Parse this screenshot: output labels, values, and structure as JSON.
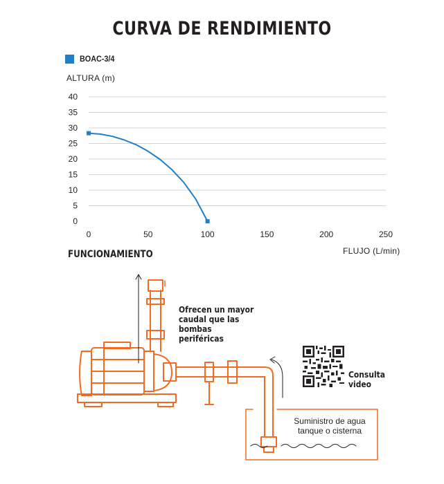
{
  "title": "CURVA DE RENDIMIENTO",
  "chart_data": {
    "type": "line",
    "title": "CURVA DE RENDIMIENTO",
    "xlabel": "FLUJO (L/min)",
    "ylabel": "ALTURA  (m)",
    "xlim": [
      0,
      250
    ],
    "ylim": [
      0,
      40
    ],
    "xticks": [
      0,
      50,
      100,
      150,
      200,
      250
    ],
    "yticks": [
      0,
      5,
      10,
      15,
      20,
      25,
      30,
      35,
      40
    ],
    "grid": "horizontal",
    "legend_position": "top-left",
    "series": [
      {
        "name": "BOAC-3/4",
        "color": "#1f7fc8",
        "x": [
          0,
          10,
          20,
          30,
          40,
          50,
          60,
          70,
          80,
          90,
          100
        ],
        "y": [
          28.3,
          28.0,
          27.3,
          26.1,
          24.6,
          22.5,
          19.9,
          16.6,
          12.5,
          7.2,
          0
        ]
      }
    ]
  },
  "diagram": {
    "section_title": "FUNCIONAMIENTO",
    "note": "Ofrecen un mayor caudal que las bombas periféricas",
    "qr_label": [
      "Consulta",
      "video"
    ],
    "supply_label": [
      "Suministro de agua",
      "tanque o cisterna"
    ],
    "line_color": "#f26b21"
  }
}
